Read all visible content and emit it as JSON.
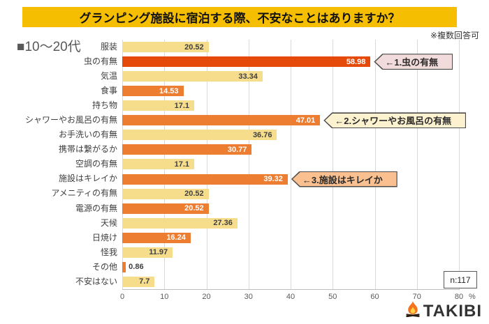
{
  "title": "グランピング施設に宿泊する際、不安なことはありますか？",
  "note": "※複数回答可",
  "legend_label": "■10〜20代",
  "sample_size": "n:117",
  "logo": {
    "icon": "campfire-icon",
    "text": "TAKIBI"
  },
  "colors": {
    "title_bg": "#F5BE00",
    "bar_yellow": "#F6DD8C",
    "bar_orange": "#ED7D31",
    "bar_red": "#E64A0B",
    "gridline": "#D9D9D9",
    "axis_line": "#BFBFBF",
    "label_dark": "#404040",
    "label_light": "#FFFFFF"
  },
  "chart_data": {
    "type": "bar",
    "orientation": "horizontal",
    "title": "グランピング施設に宿泊する際、不安なことはありますか？",
    "categories": [
      "服装",
      "虫の有無",
      "気温",
      "食事",
      "持ち物",
      "シャワーやお風呂の有無",
      "お手洗いの有無",
      "携帯は繋がるか",
      "空調の有無",
      "施設はキレイか",
      "アメニティの有無",
      "電源の有無",
      "天候",
      "日焼け",
      "怪我",
      "その他",
      "不安はない"
    ],
    "values": [
      20.52,
      58.98,
      33.34,
      14.53,
      17.1,
      47.01,
      36.76,
      30.77,
      17.1,
      39.32,
      20.52,
      20.52,
      27.36,
      16.24,
      11.97,
      0.86,
      7.7
    ],
    "bar_color_keys": [
      "yellow",
      "red",
      "yellow",
      "orange",
      "yellow",
      "orange",
      "yellow",
      "orange",
      "yellow",
      "orange",
      "yellow",
      "orange",
      "yellow",
      "orange",
      "yellow",
      "orange",
      "yellow"
    ],
    "xlim": [
      0,
      80
    ],
    "x_ticks": [
      0,
      10,
      20,
      30,
      40,
      50,
      60,
      70,
      80
    ],
    "x_unit": "%",
    "grid": true,
    "annotations": [
      {
        "row": 1,
        "text": "←1.虫の有無",
        "bg": "#F2DCDB"
      },
      {
        "row": 5,
        "text": "←2.シャワーやお風呂の有無",
        "bg": "#FCF2CF"
      },
      {
        "row": 9,
        "text": "←3.施設はキレイか",
        "bg": "#FAC08F"
      }
    ]
  }
}
